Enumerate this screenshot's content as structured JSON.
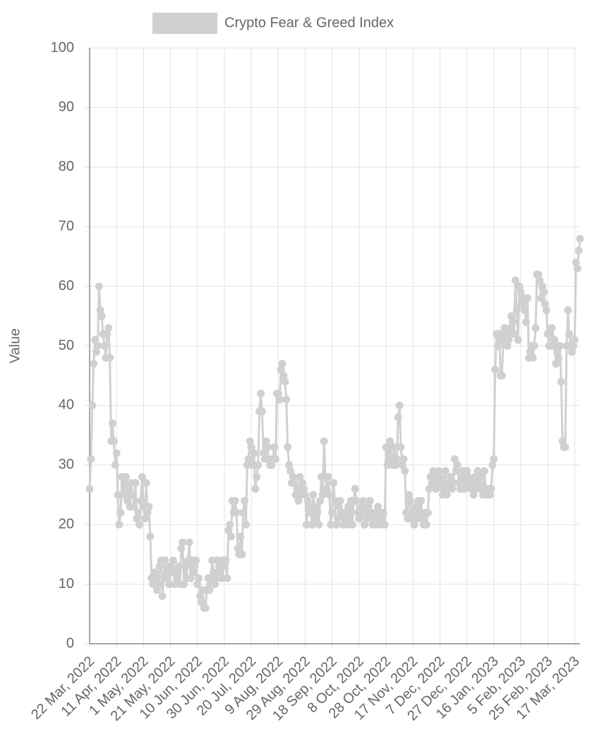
{
  "chart_data": {
    "type": "line",
    "categories": [
      "22 Mar, 2022",
      null,
      null,
      null,
      null,
      null,
      null,
      null,
      null,
      null,
      null,
      null,
      null,
      null,
      null,
      null,
      null,
      null,
      null,
      null,
      "11 Apr, 2022",
      null,
      null,
      null,
      null,
      null,
      null,
      null,
      null,
      null,
      null,
      null,
      null,
      null,
      null,
      null,
      null,
      null,
      null,
      null,
      "1 May, 2022",
      null,
      null,
      null,
      null,
      null,
      null,
      null,
      null,
      null,
      null,
      null,
      null,
      null,
      null,
      null,
      null,
      null,
      null,
      null,
      "21 May, 2022",
      null,
      null,
      null,
      null,
      null,
      null,
      null,
      null,
      null,
      null,
      null,
      null,
      null,
      null,
      null,
      null,
      null,
      null,
      null,
      "10 Jun, 2022",
      null,
      null,
      null,
      null,
      null,
      null,
      null,
      null,
      null,
      null,
      null,
      null,
      null,
      null,
      null,
      null,
      null,
      null,
      null,
      "30 Jun, 2022",
      null,
      null,
      null,
      null,
      null,
      null,
      null,
      null,
      null,
      null,
      null,
      null,
      null,
      null,
      null,
      null,
      null,
      null,
      null,
      "20 Jul, 2022",
      null,
      null,
      null,
      null,
      null,
      null,
      null,
      null,
      null,
      null,
      null,
      null,
      null,
      null,
      null,
      null,
      null,
      null,
      null,
      "9 Aug, 2022",
      null,
      null,
      null,
      null,
      null,
      null,
      null,
      null,
      null,
      null,
      null,
      null,
      null,
      null,
      null,
      null,
      null,
      null,
      null,
      "29 Aug, 2022",
      null,
      null,
      null,
      null,
      null,
      null,
      null,
      null,
      null,
      null,
      null,
      null,
      null,
      null,
      null,
      null,
      null,
      null,
      null,
      "18 Sep, 2022",
      null,
      null,
      null,
      null,
      null,
      null,
      null,
      null,
      null,
      null,
      null,
      null,
      null,
      null,
      null,
      null,
      null,
      null,
      null,
      "8 Oct, 2022",
      null,
      null,
      null,
      null,
      null,
      null,
      null,
      null,
      null,
      null,
      null,
      null,
      null,
      null,
      null,
      null,
      null,
      null,
      null,
      "28 Oct, 2022",
      null,
      null,
      null,
      null,
      null,
      null,
      null,
      null,
      null,
      null,
      null,
      null,
      null,
      null,
      null,
      null,
      null,
      null,
      null,
      "17 Nov, 2022",
      null,
      null,
      null,
      null,
      null,
      null,
      null,
      null,
      null,
      null,
      null,
      null,
      null,
      null,
      null,
      null,
      null,
      null,
      null,
      "7 Dec, 2022",
      null,
      null,
      null,
      null,
      null,
      null,
      null,
      null,
      null,
      null,
      null,
      null,
      null,
      null,
      null,
      null,
      null,
      null,
      null,
      "27 Dec, 2022",
      null,
      null,
      null,
      null,
      null,
      null,
      null,
      null,
      null,
      null,
      null,
      null,
      null,
      null,
      null,
      null,
      null,
      null,
      null,
      "16 Jan, 2023",
      null,
      null,
      null,
      null,
      null,
      null,
      null,
      null,
      null,
      null,
      null,
      null,
      null,
      null,
      null,
      null,
      null,
      null,
      null,
      "5 Feb, 2023",
      null,
      null,
      null,
      null,
      null,
      null,
      null,
      null,
      null,
      null,
      null,
      null,
      null,
      null,
      null,
      null,
      null,
      null,
      null,
      "25 Feb, 2023",
      null,
      null,
      null,
      null,
      null,
      null,
      null,
      null,
      null,
      null,
      null,
      null,
      null,
      null,
      null,
      null,
      null,
      null,
      null,
      "17 Mar, 2023",
      null,
      null,
      null,
      null
    ],
    "series": [
      {
        "name": "Crypto Fear & Greed Index",
        "color": "#d0d0d0",
        "values": [
          26,
          31,
          40,
          47,
          51,
          49,
          50,
          60,
          56,
          55,
          52,
          50,
          48,
          52,
          53,
          48,
          34,
          37,
          34,
          30,
          32,
          25,
          20,
          22,
          28,
          25,
          27,
          28,
          24,
          26,
          23,
          27,
          25,
          23,
          27,
          21,
          22,
          20,
          24,
          28,
          23,
          21,
          27,
          22,
          23,
          18,
          11,
          10,
          12,
          11,
          9,
          10,
          13,
          14,
          8,
          11,
          14,
          12,
          11,
          10,
          13,
          12,
          14,
          10,
          12,
          11,
          13,
          10,
          16,
          17,
          10,
          13,
          11,
          14,
          17,
          11,
          14,
          12,
          13,
          14,
          10,
          11,
          8,
          7,
          9,
          6,
          6,
          9,
          11,
          9,
          11,
          14,
          12,
          10,
          11,
          14,
          13,
          12,
          11,
          14,
          13,
          14,
          11,
          19,
          20,
          18,
          24,
          22,
          24,
          22,
          16,
          15,
          18,
          15,
          22,
          24,
          20,
          30,
          31,
          34,
          33,
          30,
          32,
          26,
          28,
          30,
          39,
          42,
          39,
          32,
          31,
          34,
          33,
          31,
          30,
          30,
          31,
          33,
          31,
          42,
          42,
          41,
          46,
          47,
          45,
          44,
          41,
          33,
          30,
          29,
          27,
          28,
          27,
          25,
          26,
          24,
          28,
          25,
          27,
          26,
          25,
          20,
          24,
          22,
          23,
          20,
          25,
          21,
          23,
          22,
          20,
          24,
          28,
          25,
          34,
          28,
          26,
          28,
          25,
          20,
          22,
          27,
          24,
          20,
          21,
          23,
          24,
          22,
          20,
          22,
          21,
          20,
          23,
          21,
          24,
          20,
          24,
          26,
          24,
          22,
          21,
          22,
          23,
          24,
          20,
          22,
          21,
          23,
          24,
          22,
          20,
          21,
          22,
          20,
          23,
          22,
          21,
          20,
          22,
          20,
          33,
          30,
          32,
          34,
          31,
          30,
          33,
          30,
          31,
          38,
          40,
          33,
          30,
          31,
          29,
          22,
          21,
          25,
          24,
          21,
          22,
          20,
          23,
          21,
          24,
          22,
          24,
          21,
          20,
          22,
          20,
          22,
          26,
          28,
          27,
          29,
          28,
          26,
          27,
          29,
          28,
          27,
          25,
          26,
          29,
          25,
          26,
          27,
          28,
          26,
          27,
          31,
          29,
          30,
          27,
          26,
          28,
          29,
          26,
          27,
          29,
          28,
          27,
          26,
          27,
          25,
          28,
          26,
          29,
          27,
          28,
          26,
          25,
          29,
          26,
          25,
          26,
          25,
          26,
          30,
          31,
          46,
          52,
          50,
          52,
          45,
          45,
          51,
          53,
          52,
          50,
          51,
          53,
          55,
          54,
          52,
          61,
          56,
          51,
          60,
          59,
          57,
          58,
          56,
          54,
          58,
          48,
          49,
          50,
          48,
          50,
          53,
          62,
          62,
          61,
          58,
          60,
          59,
          57,
          56,
          52,
          50,
          52,
          53,
          50,
          51,
          47,
          49,
          48,
          50,
          44,
          34,
          33,
          33,
          50,
          56,
          52,
          50,
          49,
          50,
          51,
          64,
          63,
          66,
          68
        ]
      }
    ],
    "y_label": "Value",
    "ylim": [
      0,
      100
    ],
    "yticks": [
      0,
      10,
      20,
      30,
      40,
      50,
      60,
      70,
      80,
      90,
      100
    ],
    "grid": true,
    "legend": "top"
  }
}
